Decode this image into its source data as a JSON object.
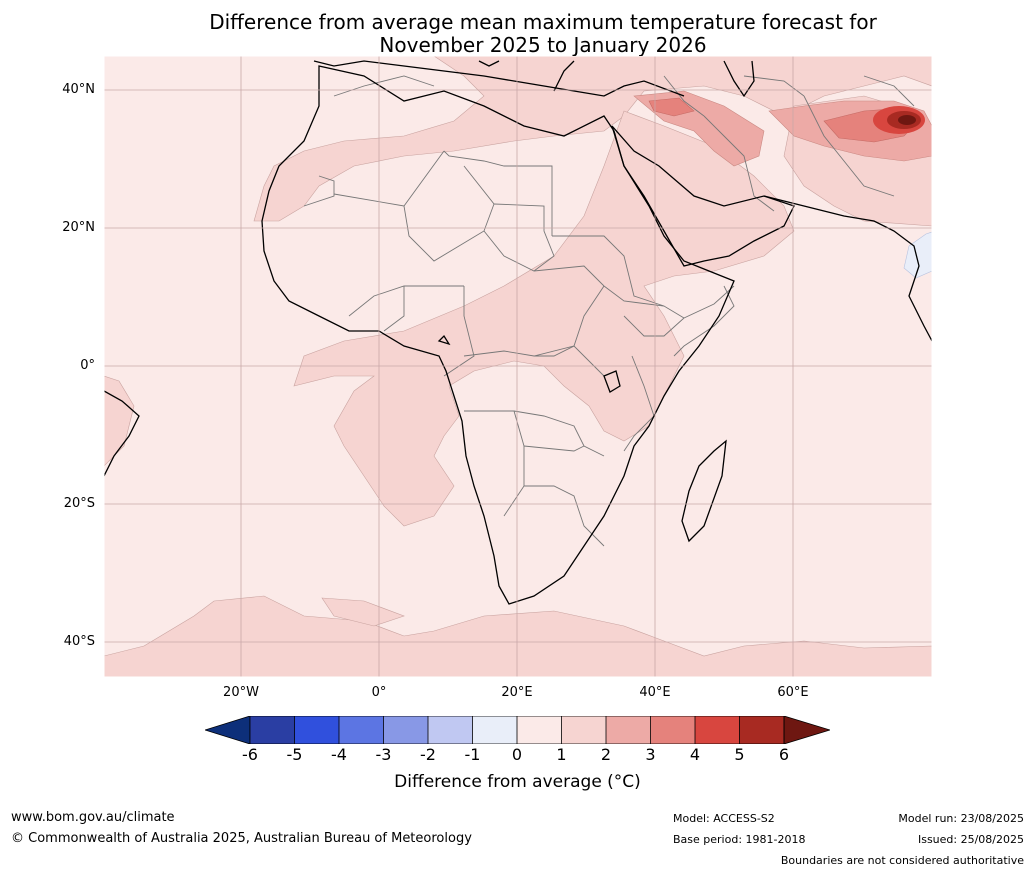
{
  "title": {
    "line1": "Difference from average mean maximum temperature forecast for",
    "line2": "November 2025 to January 2026"
  },
  "map": {
    "latitude_labels": [
      "40°N",
      "20°N",
      "0°",
      "20°S",
      "40°S"
    ],
    "longitude_labels": [
      "20°W",
      "0°",
      "20°E",
      "40°E",
      "60°E"
    ],
    "colors": {
      "ocean_base": "#fbeae8",
      "band_1_2": "#f6d4d1",
      "band_2_3": "#edaaa6",
      "band_3_4": "#e5827c",
      "band_4_5": "#d8463f",
      "band_5_6": "#a82a22",
      "band_above_6": "#6e1711",
      "cool_band": "#e9eef9",
      "coastline": "#000000",
      "borders": "#777777",
      "gridlines": "#c9a8a8"
    }
  },
  "colorbar": {
    "ticks": [
      "-6",
      "-5",
      "-4",
      "-3",
      "-2",
      "-1",
      "0",
      "1",
      "2",
      "3",
      "4",
      "5",
      "6"
    ],
    "colors": [
      "#0d2f7a",
      "#2a3ea3",
      "#3050dd",
      "#5c75e3",
      "#8898e6",
      "#c0c8f2",
      "#e9eef9",
      "#fbeae8",
      "#f6d4d1",
      "#edaaa6",
      "#e5827c",
      "#d8463f",
      "#a82a22",
      "#6e1711"
    ],
    "label": "Difference from average (°C)"
  },
  "footer": {
    "website": "www.bom.gov.au/climate",
    "copyright": "© Commonwealth of Australia 2025, Australian Bureau of Meteorology",
    "model": "Model: ACCESS-S2",
    "base_period": "Base period: 1981-2018",
    "model_run": "Model run: 23/08/2025",
    "issued": "Issued: 25/08/2025",
    "disclaimer": "Boundaries are not considered authoritative"
  }
}
